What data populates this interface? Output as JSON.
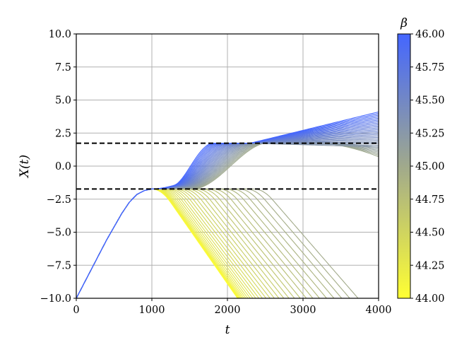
{
  "chart_data": {
    "type": "line",
    "xlabel": "t",
    "ylabel": "X(t)",
    "xlim": [
      0,
      4000
    ],
    "ylim": [
      -10,
      10
    ],
    "xticks": [
      "0",
      "1000",
      "2000",
      "3000",
      "4000"
    ],
    "yticks": [
      "−10.0",
      "−7.5",
      "−5.0",
      "−2.5",
      "0.0",
      "2.5",
      "5.0",
      "7.5",
      "10.0"
    ],
    "grid": true,
    "colorbar": {
      "label": "β",
      "range": [
        44.0,
        46.0
      ],
      "ticks": [
        "44.00",
        "44.25",
        "44.50",
        "44.75",
        "45.00",
        "45.25",
        "45.50",
        "45.75",
        "46.00"
      ],
      "color_low": "#ffff33",
      "color_mid": "#a0a98c",
      "color_high": "#4466ff"
    },
    "reference_lines": [
      {
        "y": 1.73,
        "style": "dashed",
        "color": "#000000"
      },
      {
        "y": -1.73,
        "style": "dashed",
        "color": "#000000"
      }
    ],
    "shared_trajectory": {
      "t": [
        0,
        200,
        400,
        600,
        700,
        800,
        900,
        1000
      ],
      "x": [
        -10.0,
        -7.8,
        -5.6,
        -3.6,
        -2.75,
        -2.15,
        -1.85,
        -1.73
      ]
    },
    "upper_branch": {
      "beta_range": [
        45.0,
        46.0
      ],
      "x_end_range": [
        0.55,
        4.1
      ],
      "x_plateau": 1.73
    },
    "lower_branch": {
      "beta_range": [
        44.0,
        45.0
      ],
      "slope_per_1000": -8.2,
      "x_end_min": -10.0
    },
    "n_series": 60
  }
}
